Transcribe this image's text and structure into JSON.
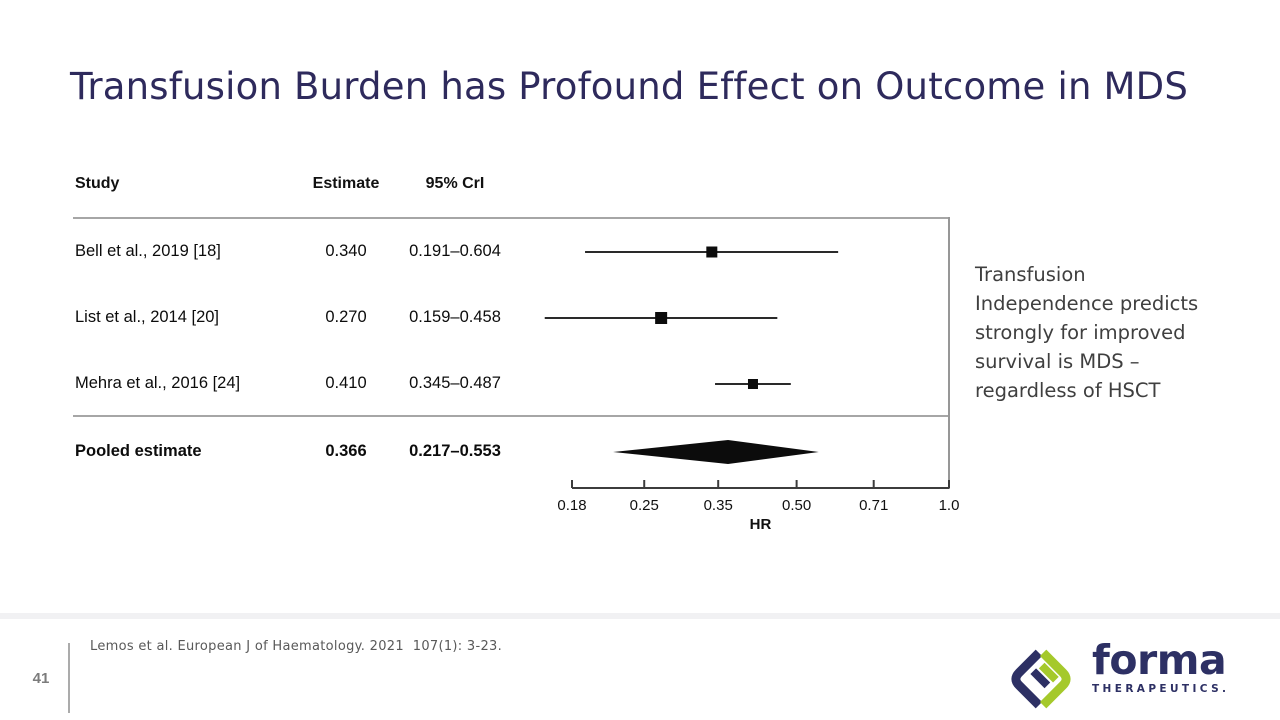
{
  "slide": {
    "title": "Transfusion Burden has Profound Effect on Outcome in MDS",
    "annotation": "Transfusion\nIndependence predicts\nstrongly for improved\nsurvival is MDS –\nregardless of HSCT",
    "citation": "Lemos et al. European J of Haematology. 2021  107(1): 3-23.",
    "page_number": "41"
  },
  "logo": {
    "name": "forma",
    "sub": "THERAPEUTICS.",
    "navy": "#2d3064",
    "green": "#a5c92b"
  },
  "chart_data": {
    "type": "forest",
    "columns": [
      "Study",
      "Estimate",
      "95% CrI"
    ],
    "xlabel": "HR",
    "x_scale": "log",
    "x_ticks": [
      0.18,
      0.25,
      0.35,
      0.5,
      0.71,
      1.0
    ],
    "x_tick_labels": [
      "0.18",
      "0.25",
      "0.35",
      "0.50",
      "0.71",
      "1.0"
    ],
    "x_range": [
      0.18,
      1.0
    ],
    "studies": [
      {
        "label": "Bell et al., 2019 [18]",
        "estimate": "0.340",
        "ci": "0.191–0.604",
        "value": 0.34,
        "low": 0.191,
        "high": 0.604,
        "marker_size": 11
      },
      {
        "label": "List et al., 2014 [20]",
        "estimate": "0.270",
        "ci": "0.159–0.458",
        "value": 0.27,
        "low": 0.159,
        "high": 0.458,
        "marker_size": 12
      },
      {
        "label": "Mehra et al., 2016 [24]",
        "estimate": "0.410",
        "ci": "0.345–0.487",
        "value": 0.41,
        "low": 0.345,
        "high": 0.487,
        "marker_size": 10
      }
    ],
    "pooled": {
      "label": "Pooled estimate",
      "estimate": "0.366",
      "ci": "0.217–0.553",
      "value": 0.366,
      "low": 0.217,
      "high": 0.553
    },
    "colors": {
      "marks": "#0c0c0c",
      "axis": "#3c3c3c",
      "rules": "#a6a6a6",
      "title_navy": "#2e2a5c"
    }
  }
}
